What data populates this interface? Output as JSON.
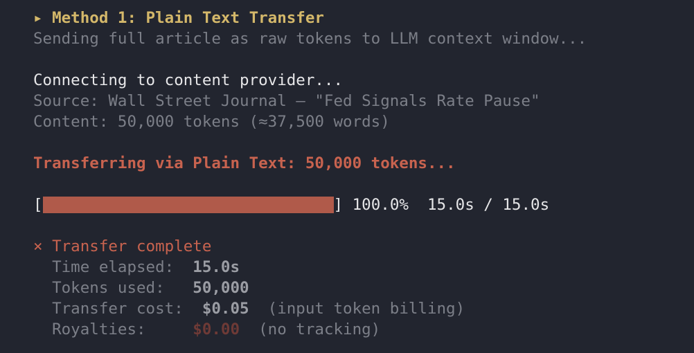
{
  "header": {
    "marker": "▸",
    "title": "Method 1: Plain Text Transfer",
    "subtitle": "Sending full article as raw tokens to LLM context window..."
  },
  "connect": {
    "status": "Connecting to content provider...",
    "source": "Source: Wall Street Journal — \"Fed Signals Rate Pause\"",
    "content": "Content: 50,000 tokens (≈37,500 words)"
  },
  "transfer": {
    "status": "Transferring via Plain Text: 50,000 tokens..."
  },
  "progress": {
    "open": "[",
    "close": "]",
    "percent_value": 100.0,
    "percent": "100.0%",
    "time": "15.0s / 15.0s",
    "color": "#b05a4a"
  },
  "result": {
    "icon": "x-mark-icon",
    "mark": "×",
    "title": "Transfer complete",
    "lines": [
      {
        "label": "Time elapsed:",
        "value": "15.0s",
        "note": ""
      },
      {
        "label": "Tokens used:",
        "value": "50,000",
        "note": ""
      },
      {
        "label": "Transfer cost:",
        "value": "$0.05",
        "note": "(input token billing)"
      },
      {
        "label": "Royalties:",
        "value": "$0.00",
        "note": "(no tracking)"
      }
    ]
  },
  "colors": {
    "background": "#22252f",
    "heading": "#d4b86a",
    "error": "#c8634f",
    "muted": "#7c7f88"
  }
}
